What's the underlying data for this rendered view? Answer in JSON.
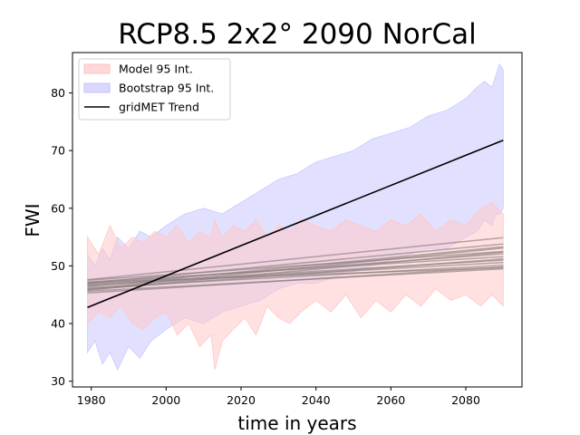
{
  "chart_data": {
    "type": "area",
    "title": "RCP8.5 2x2° 2090 NorCal",
    "xlabel": "time in years",
    "ylabel": "FWI",
    "xlim": [
      1975,
      2095
    ],
    "ylim": [
      29,
      87
    ],
    "xticks": [
      1980,
      2000,
      2020,
      2040,
      2060,
      2080
    ],
    "yticks": [
      30,
      40,
      50,
      60,
      70,
      80
    ],
    "grid": false,
    "legend_position": "top-left",
    "legend": [
      {
        "label": "Model 95 Int.",
        "kind": "fill",
        "color": "#ffc0c0"
      },
      {
        "label": "Bootstrap 95 Int.",
        "kind": "fill",
        "color": "#c0c0ff"
      },
      {
        "label": "gridMET Trend",
        "kind": "line",
        "color": "#000000"
      }
    ],
    "bootstrap_interval": {
      "color": "#c8c8ff",
      "x": [
        1979,
        1981,
        1983,
        1985,
        1987,
        1990,
        1993,
        1996,
        2000,
        2005,
        2010,
        2015,
        2020,
        2025,
        2030,
        2035,
        2040,
        2045,
        2050,
        2055,
        2060,
        2065,
        2070,
        2075,
        2080,
        2083,
        2085,
        2087,
        2088,
        2089,
        2090
      ],
      "upper": [
        52,
        50,
        53,
        51,
        55,
        53,
        56,
        55,
        57,
        59,
        60,
        59,
        61,
        63,
        65,
        66,
        68,
        69,
        70,
        72,
        73,
        74,
        76,
        77,
        79,
        81,
        82,
        81,
        83,
        85,
        84
      ],
      "lower": [
        35,
        37,
        33,
        35,
        32,
        36,
        34,
        37,
        39,
        41,
        40,
        42,
        43,
        44,
        46,
        47,
        47,
        48,
        49,
        50,
        51,
        52,
        53,
        53,
        55,
        56,
        58,
        57,
        59,
        59,
        60
      ]
    },
    "model_interval": {
      "color": "#ffc8c8",
      "x": [
        1979,
        1982,
        1985,
        1988,
        1991,
        1994,
        1997,
        2000,
        2003,
        2006,
        2009,
        2012,
        2013,
        2015,
        2018,
        2021,
        2024,
        2027,
        2030,
        2033,
        2036,
        2040,
        2044,
        2048,
        2052,
        2056,
        2060,
        2064,
        2068,
        2072,
        2076,
        2080,
        2084,
        2087,
        2090
      ],
      "upper": [
        55,
        52,
        57,
        53,
        55,
        54,
        56,
        55,
        57,
        54,
        56,
        55,
        58,
        55,
        57,
        56,
        58,
        55,
        57,
        56,
        58,
        57,
        56,
        58,
        57,
        56,
        58,
        57,
        59,
        56,
        58,
        57,
        60,
        61,
        59
      ],
      "lower": [
        40,
        42,
        41,
        43,
        40,
        39,
        41,
        42,
        38,
        40,
        36,
        38,
        32,
        37,
        39,
        41,
        38,
        43,
        41,
        40,
        42,
        44,
        42,
        45,
        41,
        44,
        42,
        45,
        43,
        46,
        44,
        45,
        43,
        45,
        43
      ]
    },
    "gridmet_trend": {
      "x": [
        1979,
        2090
      ],
      "y": [
        42.8,
        71.8
      ],
      "color": "#000000"
    },
    "model_trends": {
      "color": "#8c8080",
      "x": [
        1979,
        2090
      ],
      "lines": [
        [
          47.5,
          52.5
        ],
        [
          47.0,
          53.8
        ],
        [
          46.6,
          50.6
        ],
        [
          47.2,
          51.6
        ],
        [
          46.2,
          50.1
        ],
        [
          45.9,
          51.2
        ],
        [
          45.6,
          49.5
        ],
        [
          47.6,
          54.9
        ],
        [
          46.4,
          53.3
        ],
        [
          45.3,
          49.8
        ],
        [
          46.9,
          52.1
        ],
        [
          46.0,
          53.1
        ],
        [
          47.1,
          49.7
        ],
        [
          45.8,
          52.4
        ],
        [
          46.7,
          51.0
        ]
      ]
    }
  }
}
